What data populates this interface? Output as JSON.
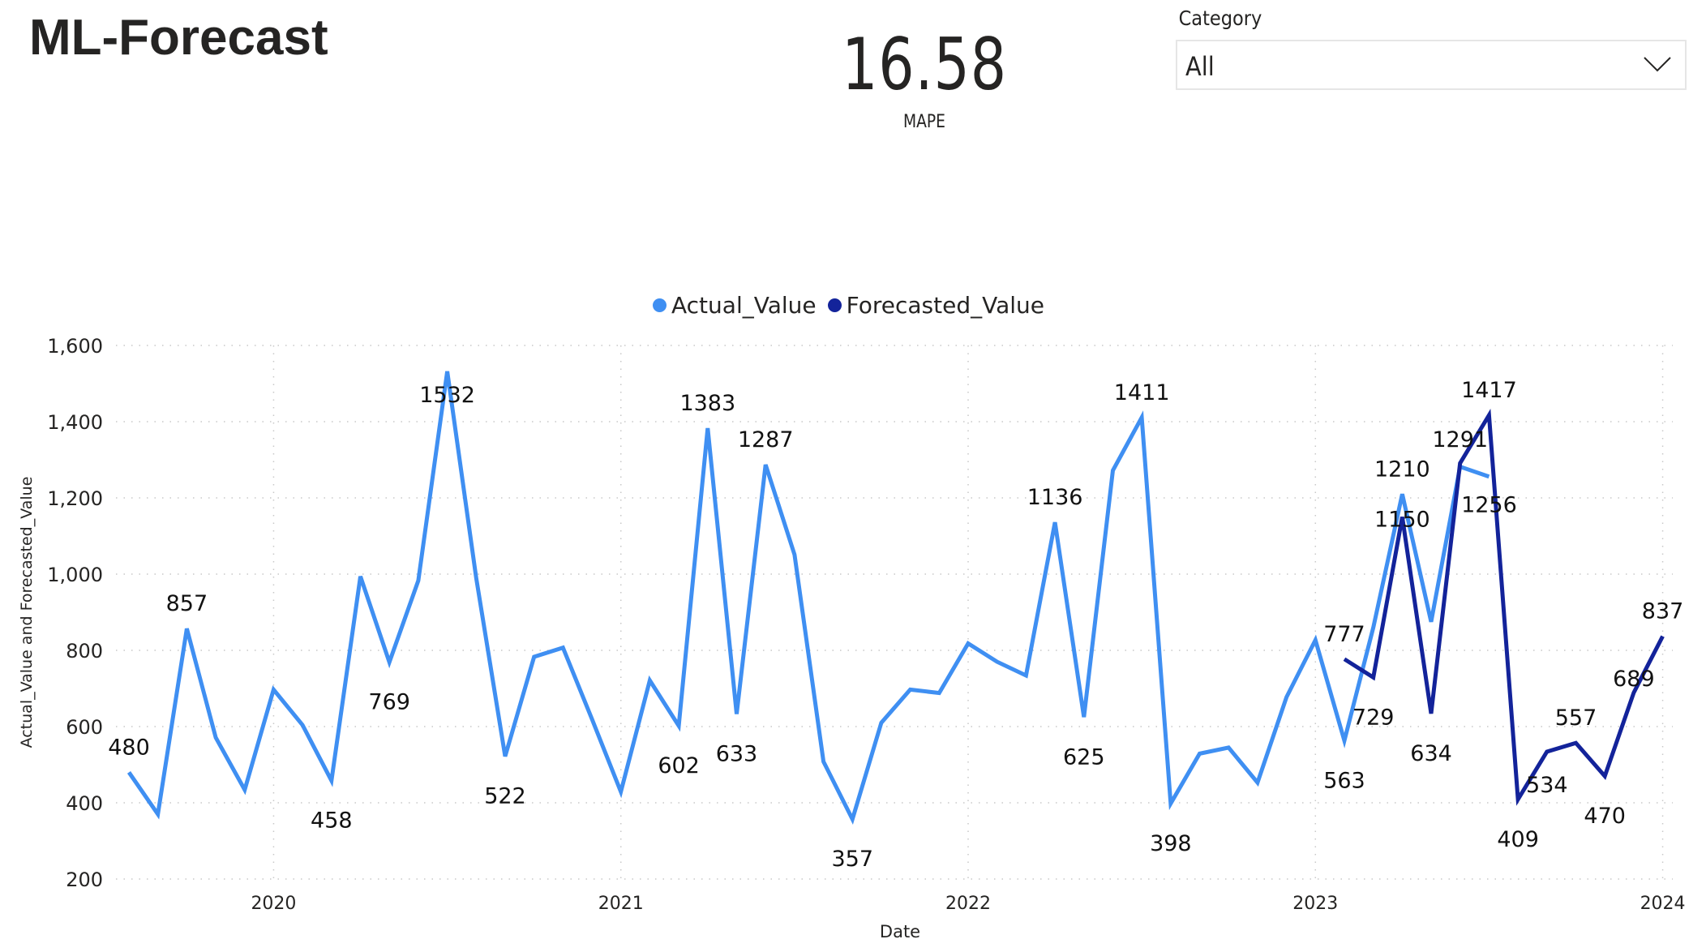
{
  "header": {
    "title": "ML-Forecast"
  },
  "kpi": {
    "value": "16.58",
    "label": "MAPE"
  },
  "slicer": {
    "label": "Category",
    "selected": "All",
    "icon": "chevron-down-icon"
  },
  "legend": {
    "items": [
      {
        "label": "Actual_Value",
        "color": "#3F8FF2",
        "icon": "circle-marker"
      },
      {
        "label": "Forecasted_Value",
        "color": "#13239A",
        "icon": "circle-marker"
      }
    ]
  },
  "axes": {
    "y_title": "Actual_Value and Forecasted_Value",
    "x_title": "Date",
    "y_ticks": [
      "1,600",
      "1,400",
      "1,200",
      "1,000",
      "800",
      "600",
      "400",
      "200"
    ],
    "x_ticks": [
      "2020",
      "2021",
      "2022",
      "2023",
      "2024"
    ]
  },
  "chart_data": {
    "type": "line",
    "title": "",
    "xlabel": "Date",
    "ylabel": "Actual_Value and Forecasted_Value",
    "ylim": [
      200,
      1600
    ],
    "y_ticks": [
      200,
      400,
      600,
      800,
      1000,
      1200,
      1400,
      1600
    ],
    "x_ticks": [
      "2020",
      "2021",
      "2022",
      "2023",
      "2024"
    ],
    "grid": true,
    "legend_position": "top-center",
    "x": [
      "2019-08",
      "2019-09",
      "2019-10",
      "2019-11",
      "2019-12",
      "2020-01",
      "2020-02",
      "2020-03",
      "2020-04",
      "2020-05",
      "2020-06",
      "2020-07",
      "2020-08",
      "2020-09",
      "2020-10",
      "2020-11",
      "2020-12",
      "2021-01",
      "2021-02",
      "2021-03",
      "2021-04",
      "2021-05",
      "2021-06",
      "2021-07",
      "2021-08",
      "2021-09",
      "2021-10",
      "2021-11",
      "2021-12",
      "2022-01",
      "2022-02",
      "2022-03",
      "2022-04",
      "2022-05",
      "2022-06",
      "2022-07",
      "2022-08",
      "2022-09",
      "2022-10",
      "2022-11",
      "2022-12",
      "2023-01",
      "2023-02",
      "2023-03",
      "2023-04",
      "2023-05",
      "2023-06",
      "2023-07",
      "2023-08",
      "2023-09",
      "2023-10",
      "2023-11",
      "2023-12",
      "2024-01"
    ],
    "series": [
      {
        "name": "Actual_Value",
        "color": "#3F8FF2",
        "values": [
          480,
          370,
          857,
          571,
          434,
          697,
          604,
          458,
          994,
          769,
          983,
          1532,
          990,
          522,
          783,
          807,
          620,
          429,
          721,
          602,
          1383,
          633,
          1287,
          1051,
          508,
          357,
          610,
          697,
          688,
          818,
          770,
          734,
          1136,
          625,
          1272,
          1411,
          398,
          529,
          545,
          453,
          677,
          827,
          563,
          860,
          1210,
          875,
          1282,
          1256,
          null,
          null,
          null,
          null,
          null,
          null
        ],
        "labels": {
          "0": "480",
          "2": "857",
          "7": "458",
          "9": "769",
          "11": "1532",
          "13": "522",
          "19": "602",
          "20": "1383",
          "21": "633",
          "22": "1287",
          "25": "357",
          "32": "1136",
          "33": "625",
          "35": "1411",
          "36": "398",
          "42": "563",
          "44": "1210",
          "47": "1256"
        }
      },
      {
        "name": "Forecasted_Value",
        "color": "#13239A",
        "values": [
          null,
          null,
          null,
          null,
          null,
          null,
          null,
          null,
          null,
          null,
          null,
          null,
          null,
          null,
          null,
          null,
          null,
          null,
          null,
          null,
          null,
          null,
          null,
          null,
          null,
          null,
          null,
          null,
          null,
          null,
          null,
          null,
          null,
          null,
          null,
          null,
          null,
          null,
          null,
          null,
          null,
          null,
          777,
          729,
          1150,
          634,
          1291,
          1417,
          409,
          534,
          557,
          470,
          689,
          837
        ],
        "labels": {
          "42": "777",
          "43": "729",
          "44": "1150",
          "45": "634",
          "46": "1291",
          "47": "1417",
          "48": "409",
          "49": "534",
          "50": "557",
          "51": "470",
          "52": "689",
          "53": "837"
        }
      }
    ]
  }
}
